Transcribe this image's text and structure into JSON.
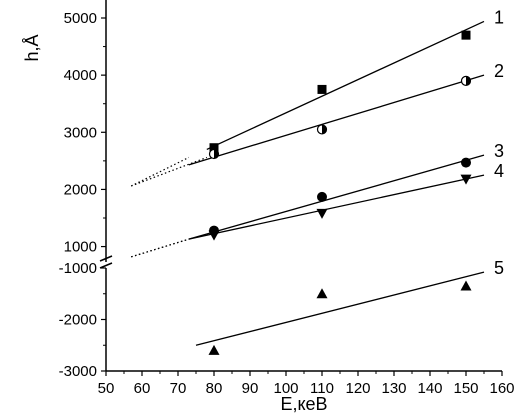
{
  "chart_data": {
    "type": "scatter",
    "title": "",
    "xlabel": "E,кеВ",
    "ylabel": "h,Å",
    "xlim": [
      50,
      160
    ],
    "x_ticks": [
      50,
      60,
      70,
      80,
      90,
      100,
      110,
      120,
      130,
      140,
      150,
      160
    ],
    "upper_panel": {
      "ylim": [
        800,
        5000
      ],
      "y_ticks": [
        1000,
        2000,
        3000,
        4000,
        5000
      ]
    },
    "lower_panel": {
      "ylim": [
        -3000,
        -1000
      ],
      "y_ticks": [
        -3000,
        -2000,
        -1000
      ]
    },
    "axis_break": true,
    "grid": false,
    "legend": "none",
    "series": [
      {
        "name": "1",
        "marker": "square",
        "panel": "upper",
        "x": [
          80,
          110,
          150
        ],
        "y": [
          2730,
          3750,
          4700
        ],
        "fit": {
          "x": [
            78,
            155
          ],
          "y": [
            2700,
            4940
          ]
        },
        "extrapolation": {
          "x": [
            57,
            78
          ],
          "y": [
            2060,
            2560
          ]
        }
      },
      {
        "name": "2",
        "marker": "half-filled-circle",
        "panel": "upper",
        "x": [
          80,
          110,
          150
        ],
        "y": [
          2620,
          3050,
          3900
        ],
        "fit": {
          "x": [
            73,
            155
          ],
          "y": [
            2430,
            4000
          ]
        },
        "extrapolation": {
          "x": [
            57,
            73
          ],
          "y": [
            2060,
            2560
          ]
        }
      },
      {
        "name": "3",
        "marker": "circle",
        "panel": "upper",
        "x": [
          80,
          110,
          150
        ],
        "y": [
          1280,
          1870,
          2470
        ],
        "fit": {
          "x": [
            73,
            155
          ],
          "y": [
            1130,
            2600
          ]
        },
        "extrapolation": {
          "x": [
            57,
            73
          ],
          "y": [
            820,
            1130
          ]
        }
      },
      {
        "name": "4",
        "marker": "triangle-down",
        "panel": "upper",
        "x": [
          80,
          110,
          150
        ],
        "y": [
          1200,
          1580,
          2180
        ],
        "fit": {
          "x": [
            73,
            155
          ],
          "y": [
            1130,
            2250
          ]
        },
        "extrapolation": {
          "x": [
            57,
            73
          ],
          "y": [
            820,
            1130
          ]
        }
      },
      {
        "name": "5",
        "marker": "triangle-up",
        "panel": "lower",
        "x": [
          80,
          110,
          150
        ],
        "y": [
          -2600,
          -1500,
          -1350
        ],
        "fit": {
          "x": [
            75,
            155
          ],
          "y": [
            -2500,
            -1080
          ]
        }
      }
    ]
  }
}
